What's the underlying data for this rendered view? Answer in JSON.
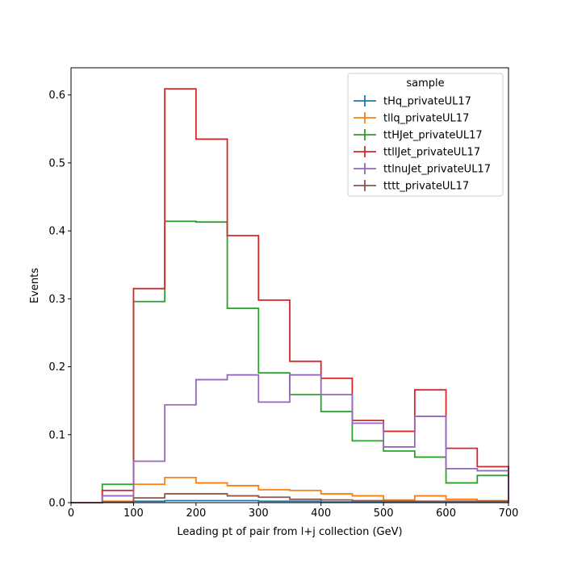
{
  "chart_data": {
    "type": "step",
    "xlabel": "Leading pt of pair from l+j collection (GeV)",
    "ylabel": "Events",
    "xlim": [
      0,
      700
    ],
    "ylim": [
      0,
      0.64
    ],
    "x_ticks": [
      0,
      100,
      200,
      300,
      400,
      500,
      600,
      700
    ],
    "y_ticks": [
      0.0,
      0.1,
      0.2,
      0.3,
      0.4,
      0.5,
      0.6
    ],
    "x_tick_labels": [
      "0",
      "100",
      "200",
      "300",
      "400",
      "500",
      "600",
      "700"
    ],
    "y_tick_labels": [
      "0.0",
      "0.1",
      "0.2",
      "0.3",
      "0.4",
      "0.5",
      "0.6"
    ],
    "bin_edges": [
      0,
      50,
      100,
      150,
      200,
      250,
      300,
      350,
      400,
      450,
      500,
      550,
      600,
      650,
      700
    ],
    "legend": {
      "title": "sample",
      "placement": "top-right"
    },
    "series": [
      {
        "name": "tHq_privateUL17",
        "color": "#1f77b4",
        "values": [
          0,
          0.001,
          0.002,
          0.003,
          0.003,
          0.003,
          0.002,
          0.002,
          0.001,
          0.001,
          0.001,
          0.001,
          0.0005,
          0.0005
        ]
      },
      {
        "name": "tllq_privateUL17",
        "color": "#ff7f0e",
        "values": [
          0,
          0.002,
          0.027,
          0.037,
          0.029,
          0.025,
          0.019,
          0.018,
          0.013,
          0.01,
          0.004,
          0.01,
          0.005,
          0.003
        ]
      },
      {
        "name": "ttHJet_privateUL17",
        "color": "#2ca02c",
        "values": [
          0,
          0.027,
          0.296,
          0.414,
          0.413,
          0.286,
          0.191,
          0.159,
          0.134,
          0.091,
          0.076,
          0.067,
          0.029,
          0.04
        ]
      },
      {
        "name": "ttllJet_privateUL17",
        "color": "#d62728",
        "values": [
          0,
          0.018,
          0.315,
          0.609,
          0.535,
          0.393,
          0.298,
          0.208,
          0.183,
          0.121,
          0.105,
          0.166,
          0.08,
          0.053
        ]
      },
      {
        "name": "ttlnuJet_privateUL17",
        "color": "#9467bd",
        "values": [
          0,
          0.01,
          0.061,
          0.144,
          0.181,
          0.188,
          0.148,
          0.188,
          0.159,
          0.117,
          0.082,
          0.127,
          0.05,
          0.047
        ]
      },
      {
        "name": "tttt_privateUL17",
        "color": "#8c564b",
        "values": [
          0,
          0.001,
          0.007,
          0.013,
          0.013,
          0.01,
          0.008,
          0.005,
          0.004,
          0.003,
          0.002,
          0.002,
          0.002,
          0.002
        ]
      }
    ]
  }
}
